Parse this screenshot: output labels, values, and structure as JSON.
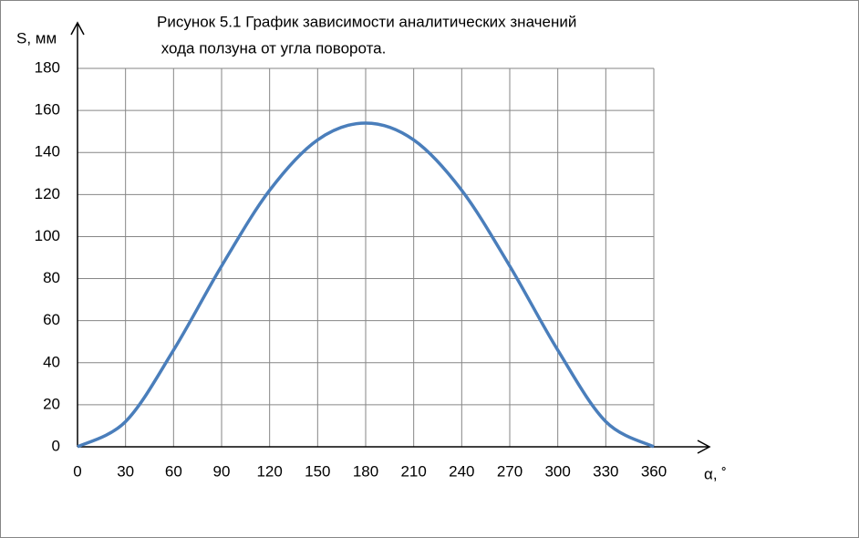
{
  "chart_data": {
    "type": "line",
    "title": [
      "Рисунок  5.1 График зависимости аналитических  значений",
      " хода ползуна от угла поворота."
    ],
    "y_label": "S, мм",
    "x_label": "α, ˚",
    "x": [
      0,
      30,
      60,
      90,
      120,
      150,
      180,
      210,
      240,
      270,
      300,
      330,
      360
    ],
    "series": [
      {
        "name": "S",
        "color": "#4a7ebb",
        "values": [
          0,
          12,
          46,
          86,
          122,
          146,
          154,
          146,
          122,
          86,
          46,
          12,
          0
        ]
      }
    ],
    "xlim": [
      0,
      360
    ],
    "xticks": [
      0,
      30,
      60,
      90,
      120,
      150,
      180,
      210,
      240,
      270,
      300,
      330,
      360
    ],
    "ylim": [
      0,
      180
    ],
    "yticks": [
      0,
      20,
      40,
      60,
      80,
      100,
      120,
      140,
      160,
      180
    ],
    "grid": true,
    "legend": false
  }
}
